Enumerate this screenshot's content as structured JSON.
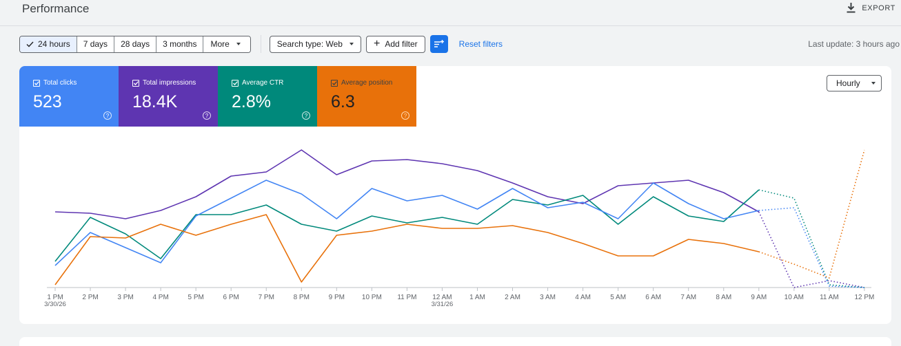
{
  "header": {
    "title": "Performance",
    "export_label": "EXPORT"
  },
  "filters": {
    "date_ranges": [
      "24 hours",
      "7 days",
      "28 days",
      "3 months"
    ],
    "selected_range": "24 hours",
    "more_label": "More",
    "search_type_label": "Search type: Web",
    "add_filter_label": "Add filter",
    "reset_label": "Reset filters",
    "last_update": "Last update: 3 hours ago"
  },
  "metrics": [
    {
      "label": "Total clicks",
      "value": "523",
      "color": "#4285f4"
    },
    {
      "label": "Total impressions",
      "value": "18.4K",
      "color": "#5e35b1"
    },
    {
      "label": "Average CTR",
      "value": "2.8%",
      "color": "#00897b"
    },
    {
      "label": "Average position",
      "value": "6.3",
      "color": "#e8710a"
    }
  ],
  "granularity": {
    "selected": "Hourly"
  },
  "chart_data": {
    "type": "line",
    "x": [
      "1 PM",
      "2 PM",
      "3 PM",
      "4 PM",
      "5 PM",
      "6 PM",
      "7 PM",
      "8 PM",
      "9 PM",
      "10 PM",
      "11 PM",
      "12 AM",
      "1 AM",
      "2 AM",
      "3 AM",
      "4 AM",
      "5 AM",
      "6 AM",
      "7 AM",
      "8 AM",
      "9 AM",
      "10 AM",
      "11 AM",
      "12 PM"
    ],
    "x_sublabels": {
      "1 PM": "3/30/26",
      "12 AM": "3/31/26"
    },
    "complete_through": "9 AM",
    "series": [
      {
        "name": "Total clicks",
        "color": "#4285f4",
        "values": [
          16,
          40,
          29,
          18,
          52,
          65,
          78,
          68,
          50,
          72,
          63,
          67,
          57,
          72,
          58,
          62,
          50,
          76,
          61,
          50,
          56,
          58,
          1,
          0
        ]
      },
      {
        "name": "Total impressions",
        "color": "#5e35b1",
        "values": [
          55,
          54,
          50,
          56,
          66,
          81,
          84,
          100,
          82,
          92,
          93,
          90,
          85,
          76,
          66,
          61,
          74,
          76,
          78,
          69,
          55,
          0,
          5,
          0
        ]
      },
      {
        "name": "Average CTR",
        "color": "#00897b",
        "values": [
          19,
          51,
          39,
          21,
          53,
          53,
          60,
          46,
          41,
          52,
          47,
          51,
          46,
          64,
          60,
          67,
          46,
          66,
          52,
          48,
          71,
          65,
          2,
          0
        ]
      },
      {
        "name": "Average position",
        "color": "#e8710a",
        "values": [
          2,
          37,
          36,
          46,
          38,
          46,
          53,
          4,
          38,
          41,
          46,
          43,
          43,
          45,
          40,
          32,
          23,
          23,
          35,
          32,
          26,
          17,
          7,
          100
        ]
      }
    ],
    "ylim": [
      0,
      100
    ],
    "grid": false,
    "legend": "metric cards (top-left)"
  }
}
